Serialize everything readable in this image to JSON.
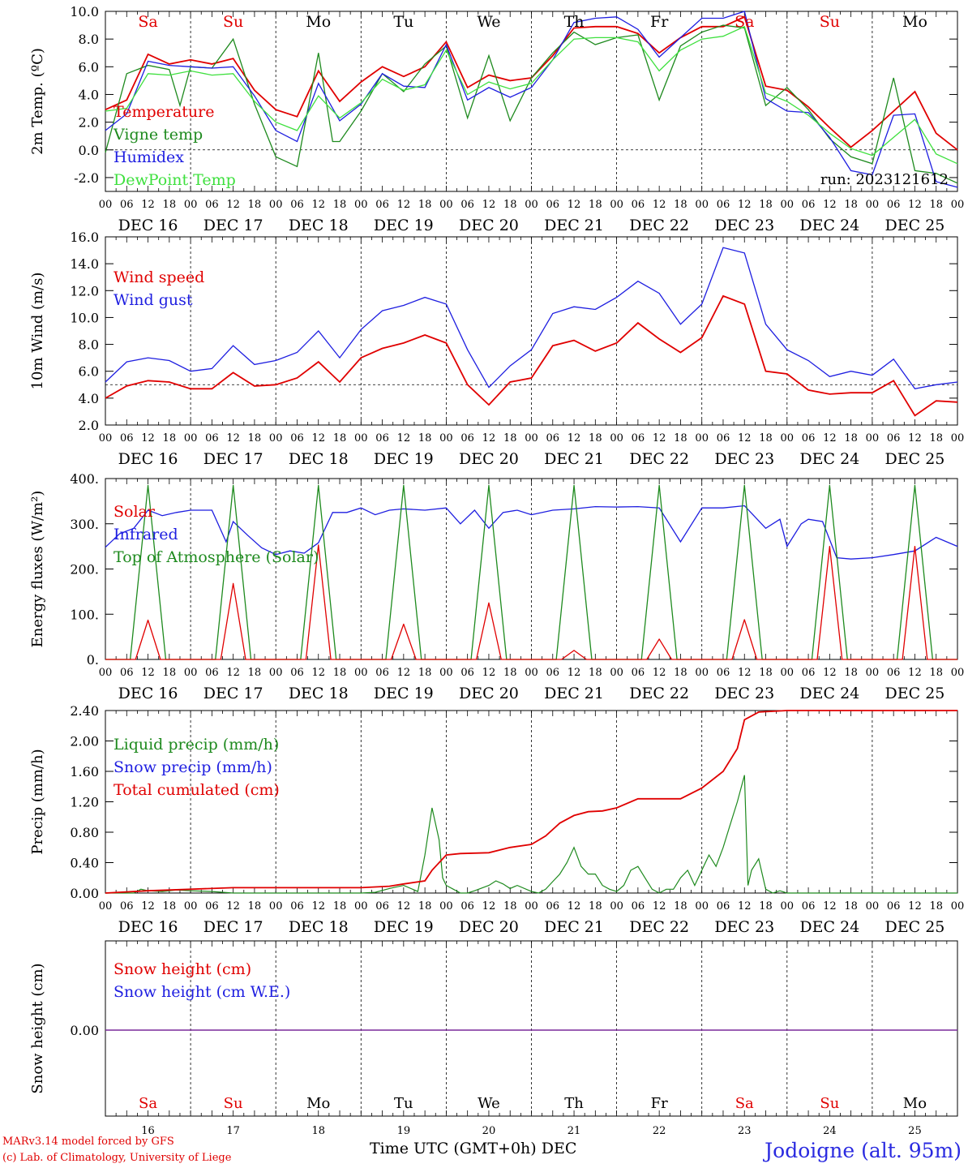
{
  "figure": {
    "credit_line1": "MARv3.14 model forced by GFS",
    "credit_line2": "(c) Lab. of Climatology, University of Liege",
    "station": "Jodoigne (alt. 95m)",
    "x_title": "Time UTC (GMT+0h)",
    "month": "DEC",
    "run_label": "run: 2023121612",
    "colors": {
      "red": "#e00000",
      "green": "#1e8a1e",
      "blue": "#1e1ee0",
      "lightgreen": "#3ee03e",
      "purple": "#7a2a9a",
      "weekend": "#e00000",
      "weekday": "#000000"
    }
  },
  "days": {
    "dates": [
      "DEC 16",
      "DEC 17",
      "DEC 18",
      "DEC 19",
      "DEC 20",
      "DEC 21",
      "DEC 22",
      "DEC 23",
      "DEC 24",
      "DEC 25"
    ],
    "day_numbers": [
      "16",
      "17",
      "18",
      "19",
      "20",
      "21",
      "22",
      "23",
      "24",
      "25"
    ],
    "weekday": [
      "Sa",
      "Su",
      "Mo",
      "Tu",
      "We",
      "Th",
      "Fr",
      "Sa",
      "Su",
      "Mo"
    ],
    "weekend": [
      true,
      true,
      false,
      false,
      false,
      false,
      false,
      true,
      true,
      false
    ],
    "hour_ticks": [
      "00",
      "06",
      "12",
      "18"
    ],
    "final_tick": "00"
  },
  "chart_data": [
    {
      "type": "line",
      "ylabel": "2m Temp. (ºC)",
      "ylim": [
        -3.0,
        10.0
      ],
      "yticks": [
        "-2.0",
        "0.0",
        "2.0",
        "4.0",
        "6.0",
        "8.0",
        "10.0"
      ],
      "x_unit": "hours since DEC 16 00 UTC",
      "hline": 0,
      "legend": [
        "Temperature",
        "Vigne temp",
        "Humidex",
        "DewPoint Temp"
      ],
      "series": [
        {
          "name": "Temperature",
          "color": "red",
          "x": [
            0,
            6,
            12,
            18,
            24,
            30,
            36,
            42,
            48,
            54,
            60,
            66,
            72,
            78,
            84,
            90,
            96,
            102,
            108,
            114,
            120,
            126,
            132,
            138,
            144,
            150,
            156,
            162,
            168,
            174,
            180,
            186,
            192,
            198,
            204,
            210,
            216,
            222,
            228,
            234,
            240
          ],
          "y": [
            2.9,
            3.6,
            6.9,
            6.2,
            6.5,
            6.2,
            6.6,
            4.3,
            2.9,
            2.4,
            5.7,
            3.5,
            4.9,
            6.0,
            5.3,
            6.0,
            7.8,
            4.5,
            5.4,
            5.0,
            5.2,
            6.8,
            8.8,
            8.9,
            8.9,
            8.4,
            7.0,
            8.1,
            8.9,
            8.9,
            9.6,
            4.6,
            4.3,
            3.1,
            1.6,
            0.2,
            1.4,
            2.8,
            4.2,
            1.2,
            0.0
          ]
        },
        {
          "name": "Vigne temp",
          "color": "green",
          "x": [
            0,
            6,
            12,
            18,
            21,
            24,
            30,
            36,
            42,
            48,
            54,
            60,
            64,
            66,
            72,
            78,
            84,
            90,
            96,
            102,
            108,
            114,
            120,
            126,
            132,
            138,
            144,
            150,
            156,
            162,
            168,
            174,
            180,
            186,
            192,
            198,
            204,
            210,
            216,
            222,
            228,
            234,
            240
          ],
          "y": [
            -0.2,
            5.5,
            6.1,
            5.8,
            3.2,
            6.0,
            5.9,
            8.0,
            3.3,
            -0.5,
            -1.2,
            7.0,
            0.6,
            0.6,
            2.8,
            5.5,
            4.2,
            6.2,
            7.5,
            2.3,
            6.8,
            2.1,
            5.2,
            7.0,
            8.5,
            7.6,
            8.1,
            8.3,
            3.6,
            7.5,
            8.5,
            9.0,
            8.8,
            3.2,
            4.5,
            2.9,
            0.8,
            -0.5,
            -1.0,
            5.2,
            -1.5,
            -1.7,
            -2.4
          ]
        },
        {
          "name": "Humidex",
          "color": "blue",
          "x": [
            0,
            6,
            12,
            18,
            24,
            30,
            36,
            42,
            48,
            54,
            60,
            66,
            72,
            78,
            84,
            90,
            96,
            102,
            108,
            114,
            120,
            126,
            132,
            138,
            144,
            150,
            156,
            162,
            168,
            174,
            180,
            186,
            192,
            198,
            204,
            210,
            216,
            222,
            228,
            234,
            240
          ],
          "y": [
            1.4,
            2.6,
            6.4,
            6.1,
            6.0,
            5.9,
            6.0,
            3.9,
            1.4,
            0.6,
            4.8,
            2.1,
            3.3,
            5.5,
            4.6,
            4.5,
            7.6,
            3.6,
            4.5,
            3.8,
            4.5,
            6.5,
            9.2,
            9.5,
            9.6,
            8.7,
            6.7,
            8.1,
            9.5,
            9.5,
            10.0,
            3.7,
            2.8,
            2.7,
            0.9,
            -1.5,
            -1.8,
            2.5,
            2.6,
            -2.3,
            -2.7
          ]
        },
        {
          "name": "DewPoint Temp",
          "color": "lightgreen",
          "x": [
            0,
            6,
            12,
            18,
            24,
            30,
            36,
            42,
            48,
            54,
            60,
            66,
            72,
            78,
            84,
            90,
            96,
            102,
            108,
            114,
            120,
            126,
            132,
            138,
            144,
            150,
            156,
            162,
            168,
            174,
            180,
            186,
            192,
            198,
            204,
            210,
            216,
            222,
            228,
            234,
            240
          ],
          "y": [
            2.8,
            3.0,
            5.5,
            5.4,
            5.7,
            5.4,
            5.5,
            3.5,
            2.0,
            1.4,
            3.9,
            2.3,
            3.4,
            5.1,
            4.3,
            4.7,
            7.2,
            4.0,
            4.9,
            4.4,
            4.8,
            6.5,
            8.0,
            8.1,
            8.1,
            7.8,
            5.7,
            7.2,
            8.0,
            8.2,
            8.9,
            4.1,
            3.5,
            2.5,
            1.2,
            0.1,
            -0.4,
            0.9,
            2.2,
            -0.3,
            -1.0
          ]
        }
      ]
    },
    {
      "type": "line",
      "ylabel": "10m Wind (m/s)",
      "ylim": [
        2.0,
        16.0
      ],
      "yticks": [
        "2.0",
        "4.0",
        "6.0",
        "8.0",
        "10.0",
        "12.0",
        "14.0",
        "16.0"
      ],
      "x_unit": "hours since DEC 16 00 UTC",
      "hline": 5.0,
      "legend": [
        "Wind speed",
        "Wind gust"
      ],
      "series": [
        {
          "name": "Wind speed",
          "color": "red",
          "x": [
            0,
            6,
            12,
            18,
            24,
            30,
            36,
            42,
            48,
            54,
            60,
            66,
            72,
            78,
            84,
            90,
            96,
            102,
            108,
            114,
            120,
            126,
            132,
            138,
            144,
            150,
            156,
            162,
            168,
            174,
            180,
            186,
            192,
            198,
            204,
            210,
            216,
            222,
            228,
            234,
            240
          ],
          "y": [
            4.0,
            4.9,
            5.3,
            5.2,
            4.7,
            4.7,
            5.9,
            4.9,
            5.0,
            5.5,
            6.7,
            5.2,
            7.0,
            7.7,
            8.1,
            8.7,
            8.1,
            5.0,
            3.5,
            5.2,
            5.5,
            7.9,
            8.3,
            7.5,
            8.1,
            9.6,
            8.4,
            7.4,
            8.5,
            11.6,
            11.0,
            6.0,
            5.8,
            4.6,
            4.3,
            4.4,
            4.4,
            5.3,
            2.7,
            3.8,
            3.7
          ]
        },
        {
          "name": "Wind gust",
          "color": "blue",
          "x": [
            0,
            6,
            12,
            18,
            24,
            30,
            36,
            42,
            48,
            54,
            60,
            66,
            72,
            78,
            84,
            90,
            96,
            102,
            108,
            114,
            120,
            126,
            132,
            138,
            144,
            150,
            156,
            162,
            168,
            174,
            180,
            186,
            192,
            198,
            204,
            210,
            216,
            222,
            228,
            234,
            240
          ],
          "y": [
            5.2,
            6.7,
            7.0,
            6.8,
            6.0,
            6.2,
            7.9,
            6.5,
            6.8,
            7.4,
            9.0,
            7.0,
            9.1,
            10.5,
            10.9,
            11.5,
            11.0,
            7.6,
            4.8,
            6.4,
            7.6,
            10.3,
            10.8,
            10.6,
            11.5,
            12.7,
            11.8,
            9.5,
            11.0,
            15.2,
            14.8,
            9.5,
            7.6,
            6.8,
            5.6,
            6.0,
            5.7,
            6.9,
            4.7,
            5.0,
            5.2
          ]
        }
      ]
    },
    {
      "type": "line",
      "ylabel": "Energy fluxes (W/m²)",
      "ylim": [
        0,
        400
      ],
      "yticks": [
        "0.",
        "100.",
        "200.",
        "300.",
        "400."
      ],
      "x_unit": "hours since DEC 16 00 UTC",
      "legend": [
        "Solar",
        "Infrared",
        "Top of Atmosphere (Solar)"
      ],
      "daily_peaks": {
        "solar": [
          87,
          168,
          253,
          78,
          125,
          20,
          45,
          88,
          250,
          250
        ],
        "toa": [
          385,
          385,
          385,
          385,
          385,
          385,
          385,
          385,
          385,
          385
        ]
      },
      "series": [
        {
          "name": "Infrared",
          "color": "blue",
          "x": [
            0,
            4,
            8,
            12,
            16,
            20,
            24,
            30,
            34,
            36,
            40,
            44,
            48,
            52,
            56,
            60,
            64,
            68,
            72,
            76,
            80,
            84,
            90,
            96,
            100,
            104,
            108,
            112,
            116,
            120,
            126,
            132,
            138,
            144,
            150,
            156,
            162,
            168,
            174,
            180,
            186,
            190,
            192,
            196,
            198,
            202,
            206,
            210,
            216,
            222,
            228,
            234,
            240
          ],
          "y": [
            248,
            278,
            290,
            330,
            318,
            325,
            330,
            330,
            260,
            305,
            275,
            247,
            232,
            240,
            235,
            258,
            325,
            325,
            335,
            320,
            330,
            333,
            330,
            335,
            300,
            330,
            290,
            325,
            330,
            320,
            330,
            333,
            338,
            337,
            338,
            335,
            260,
            335,
            335,
            340,
            290,
            310,
            250,
            300,
            310,
            305,
            225,
            222,
            225,
            232,
            240,
            270,
            250
          ]
        }
      ]
    },
    {
      "type": "line",
      "ylabel": "Precip (mm/h)",
      "ylim": [
        0,
        2.4
      ],
      "yticks": [
        "0.00",
        "0.40",
        "0.80",
        "1.20",
        "1.60",
        "2.00",
        "2.40"
      ],
      "x_unit": "hours since DEC 16 00 UTC",
      "legend": [
        "Liquid precip (mm/h)",
        "Snow precip (mm/h)",
        "Total cumulated (cm)"
      ],
      "series": [
        {
          "name": "Liquid precip (mm/h)",
          "color": "green",
          "x": [
            0,
            8,
            10,
            12,
            16,
            20,
            24,
            30,
            36,
            60,
            72,
            76,
            80,
            84,
            88,
            90,
            92,
            94,
            95,
            96,
            98,
            100,
            102,
            104,
            108,
            110,
            112,
            114,
            116,
            120,
            122,
            124,
            126,
            128,
            130,
            132,
            134,
            136,
            138,
            140,
            142,
            144,
            146,
            148,
            150,
            152,
            154,
            156,
            158,
            160,
            162,
            164,
            166,
            168,
            170,
            172,
            174,
            176,
            178,
            180,
            181,
            182,
            184,
            186,
            188,
            190,
            192,
            240
          ],
          "y": [
            0,
            0,
            0.05,
            0.03,
            0.02,
            0.04,
            0.03,
            0.02,
            0,
            0,
            0,
            0.01,
            0.06,
            0.1,
            0.02,
            0.5,
            1.12,
            0.7,
            0.2,
            0.1,
            0.05,
            0,
            0,
            0.03,
            0.1,
            0.16,
            0.12,
            0.06,
            0.1,
            0.02,
            0,
            0.05,
            0.15,
            0.25,
            0.4,
            0.6,
            0.35,
            0.25,
            0.25,
            0.1,
            0.05,
            0.02,
            0.1,
            0.3,
            0.35,
            0.2,
            0.05,
            0,
            0.05,
            0.05,
            0.2,
            0.3,
            0.1,
            0.3,
            0.5,
            0.35,
            0.6,
            0.9,
            1.2,
            1.55,
            0.1,
            0.3,
            0.45,
            0.05,
            0,
            0.03,
            0,
            0
          ]
        },
        {
          "name": "Total cumulated (cm)",
          "color": "red",
          "x": [
            0,
            12,
            24,
            36,
            48,
            60,
            72,
            80,
            84,
            90,
            92,
            96,
            100,
            108,
            114,
            120,
            124,
            128,
            132,
            136,
            140,
            144,
            150,
            156,
            162,
            168,
            174,
            178,
            180,
            184,
            192,
            240
          ],
          "y": [
            0,
            0.03,
            0.05,
            0.07,
            0.07,
            0.07,
            0.07,
            0.09,
            0.12,
            0.16,
            0.3,
            0.5,
            0.52,
            0.53,
            0.6,
            0.64,
            0.75,
            0.92,
            1.02,
            1.07,
            1.08,
            1.12,
            1.24,
            1.24,
            1.24,
            1.38,
            1.6,
            1.9,
            2.28,
            2.38,
            2.4,
            2.4
          ]
        }
      ]
    },
    {
      "type": "line",
      "ylabel": "Snow height (cm)",
      "ytick": "0.00",
      "x_unit": "hours since DEC 16 00 UTC",
      "legend": [
        "Snow height (cm)",
        "Snow height (cm W.E.)"
      ],
      "series": [
        {
          "name": "Snow height (cm)",
          "color": "purple",
          "x": [
            0,
            240
          ],
          "y": [
            0.0,
            0.0
          ]
        }
      ]
    }
  ]
}
